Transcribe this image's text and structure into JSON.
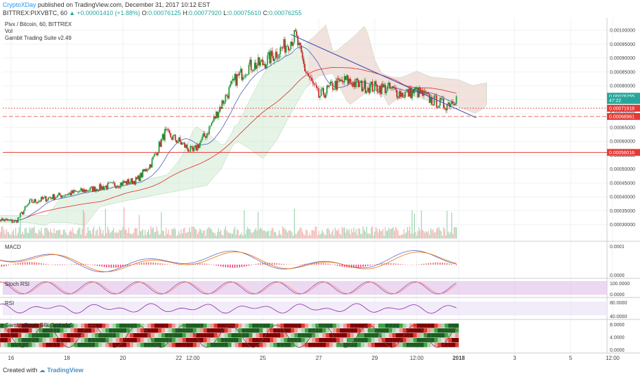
{
  "header": {
    "author": "CryptoXDay",
    "published": "published on TradingView.com, December 31, 2017 10:12 EST",
    "symbol": "BITTREX:PIXVBTC, 60",
    "change": "▲ +0.00001410 (+1.88%)",
    "open_label": "O:",
    "open": "0.00076125",
    "high_label": "H:",
    "high": "0.00077920",
    "low_label": "L:",
    "low": "0.00075610",
    "close_label": "C:",
    "close": "0.00076255"
  },
  "footer": {
    "created_with": "Created with",
    "brand": "TradingView"
  },
  "colors": {
    "up": "#26a69a",
    "down": "#ef5350",
    "candle_up": "#1e9d3a",
    "candle_down": "#c62828",
    "trend": "#3f51b5",
    "ma_red": "#e53935",
    "ma_blue": "#5c6bc0",
    "cloud_green": "#c8e6c9",
    "cloud_red": "#ffcdd2",
    "hline": "#e53935"
  },
  "chart_data": [
    {
      "type": "candlestick",
      "legend": [
        "Pivx / Bitcoin, 60, BITTREX",
        "Vol",
        "Gambit Trading Suite v2.49"
      ],
      "ylim": [
        0.00025,
        0.00103
      ],
      "yticks": [
        "0.00100000",
        "0.00095000",
        "0.00090000",
        "0.00085000",
        "0.00080000",
        "0.00075000",
        "0.00070000",
        "0.00065000",
        "0.00060000",
        "0.00055000",
        "0.00050000",
        "0.00045000",
        "0.00040000",
        "0.00035000",
        "0.00030000"
      ],
      "xticks": [
        "16",
        "18",
        "20",
        "22",
        "12:00",
        "25",
        "27",
        "29",
        "12:00",
        "2018",
        "3",
        "5",
        "12:00"
      ],
      "price_labels": [
        {
          "label": "0.00076255",
          "value": 0.00076255,
          "color": "#26a69a"
        },
        {
          "label": "47:22",
          "value": 0.000747,
          "color": "#26a69a"
        },
        {
          "label": "0.00071918",
          "value": 0.00071918,
          "color": "#e53935"
        },
        {
          "label": "0.00068961",
          "value": 0.00068961,
          "color": "#e53935"
        },
        {
          "label": "0.00056016",
          "value": 0.00056016,
          "color": "#e53935"
        }
      ],
      "horizontal_levels": [
        0.00071918,
        0.00068961,
        0.00056016
      ],
      "trendline": [
        {
          "x": "Dec 26 00:00",
          "y": 0.000985
        },
        {
          "x": "Jan 1 15:00",
          "y": 0.000685
        }
      ],
      "price_path": [
        [
          "Dec 15 12:00",
          0.00032
        ],
        [
          "Dec 16 04:00",
          0.00031
        ],
        [
          "Dec 16 16:00",
          0.00038
        ],
        [
          "Dec 17 12:00",
          0.0004
        ],
        [
          "Dec 18 12:00",
          0.00042
        ],
        [
          "Dec 19 12:00",
          0.00044
        ],
        [
          "Dec 20 12:00",
          0.00046
        ],
        [
          "Dec 21 00:00",
          0.00052
        ],
        [
          "Dec 21 12:00",
          0.00063
        ],
        [
          "Dec 22 00:00",
          0.0006
        ],
        [
          "Dec 22 12:00",
          0.00056
        ],
        [
          "Dec 23 00:00",
          0.00063
        ],
        [
          "Dec 23 12:00",
          0.00073
        ],
        [
          "Dec 24 00:00",
          0.00082
        ],
        [
          "Dec 24 12:00",
          0.00087
        ],
        [
          "Dec 25 00:00",
          0.00088
        ],
        [
          "Dec 25 18:00",
          0.00094
        ],
        [
          "Dec 26 04:00",
          0.00098
        ],
        [
          "Dec 26 12:00",
          0.00086
        ],
        [
          "Dec 27 00:00",
          0.00076
        ],
        [
          "Dec 27 12:00",
          0.0008
        ],
        [
          "Dec 28 00:00",
          0.00082
        ],
        [
          "Dec 28 12:00",
          0.0008
        ],
        [
          "Dec 29 12:00",
          0.00079
        ],
        [
          "Dec 30 00:00",
          0.00077
        ],
        [
          "Dec 30 12:00",
          0.00078
        ],
        [
          "Dec 31 00:00",
          0.00075
        ],
        [
          "Dec 31 12:00",
          0.00073
        ],
        [
          "Dec 31 20:00",
          0.00075
        ],
        [
          "Dec 31 22:00",
          0.000763
        ]
      ]
    },
    {
      "type": "line",
      "name": "MACD",
      "legend": "MACD",
      "yticks": [
        "0.0001",
        "0.0000"
      ],
      "ylim": [
        -0.00012,
        0.00015
      ]
    },
    {
      "type": "line",
      "name": "Stoch RSI",
      "legend": "Stoch RSI",
      "yticks": [
        "100.0000",
        "0.0000"
      ],
      "ylim": [
        -5,
        110
      ]
    },
    {
      "type": "line",
      "name": "RSI",
      "legend": "RSI",
      "yticks": [
        "80.0000",
        "40.0000"
      ],
      "ylim": [
        30,
        90
      ]
    },
    {
      "type": "heatmap",
      "name": "Gambit Stoch RSI Grid v1.5",
      "legend": "Gambit Stoch RSI Grid v1.5",
      "yticks": [
        "8.0000",
        "4.0000",
        "0.0000"
      ],
      "ylim": [
        -1,
        9
      ]
    }
  ]
}
